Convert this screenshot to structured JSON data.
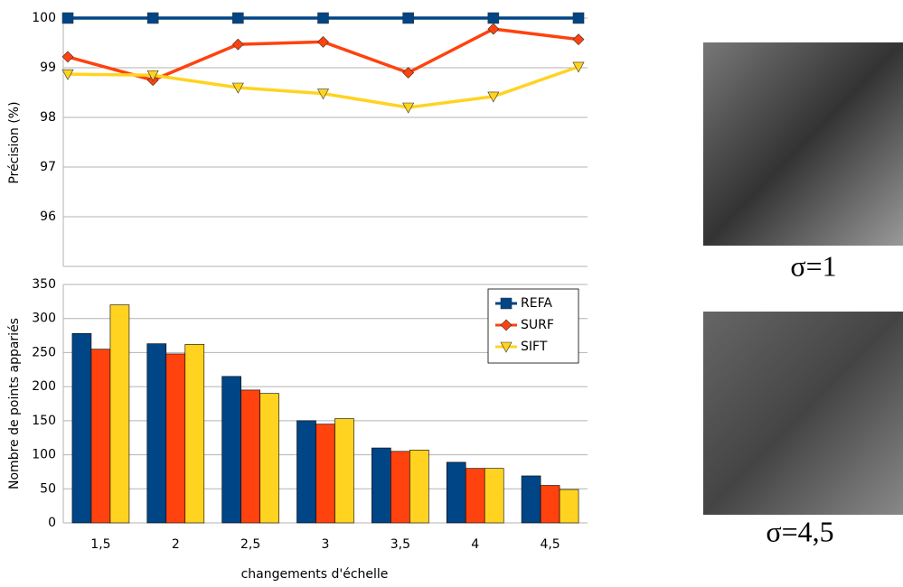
{
  "chart_data": [
    {
      "type": "line",
      "y_label": "Précision (%)",
      "ylim": [
        95,
        100
      ],
      "yticks": [
        96,
        97,
        98,
        99,
        100
      ],
      "grid": true,
      "series": [
        {
          "color": "#004586",
          "marker": "square",
          "values": [
            100,
            100,
            100,
            100,
            100,
            100,
            100
          ]
        },
        {
          "color": "#ff420e",
          "marker": "diamond",
          "values": [
            99.22,
            98.75,
            99.47,
            99.52,
            98.9,
            99.78,
            99.57
          ]
        },
        {
          "color": "#ffd320",
          "marker": "triangle-down",
          "values": [
            98.87,
            98.85,
            98.6,
            98.48,
            98.2,
            98.42,
            99.02
          ]
        }
      ]
    },
    {
      "type": "bar",
      "y_label": "Nombre de points appariés",
      "x_label": "changements d'échelle",
      "categories": [
        "1,5",
        "2",
        "2,5",
        "3",
        "3,5",
        "4",
        "4,5"
      ],
      "ylim": [
        0,
        350
      ],
      "yticks": [
        0,
        50,
        100,
        150,
        200,
        250,
        300,
        350
      ],
      "grid": true,
      "legend": "top-right",
      "series": [
        {
          "name": "REFA",
          "color": "#004586",
          "marker": "square",
          "values": [
            278,
            263,
            215,
            150,
            110,
            89,
            69
          ]
        },
        {
          "name": "SURF",
          "color": "#ff420e",
          "marker": "diamond",
          "values": [
            255,
            248,
            195,
            145,
            105,
            80,
            55
          ]
        },
        {
          "name": "SIFT",
          "color": "#ffd320",
          "marker": "triangle-down",
          "values": [
            320,
            262,
            190,
            153,
            107,
            80,
            49
          ]
        }
      ]
    }
  ],
  "images": [
    {
      "caption": "σ=1"
    },
    {
      "caption": "σ=4,5"
    }
  ]
}
